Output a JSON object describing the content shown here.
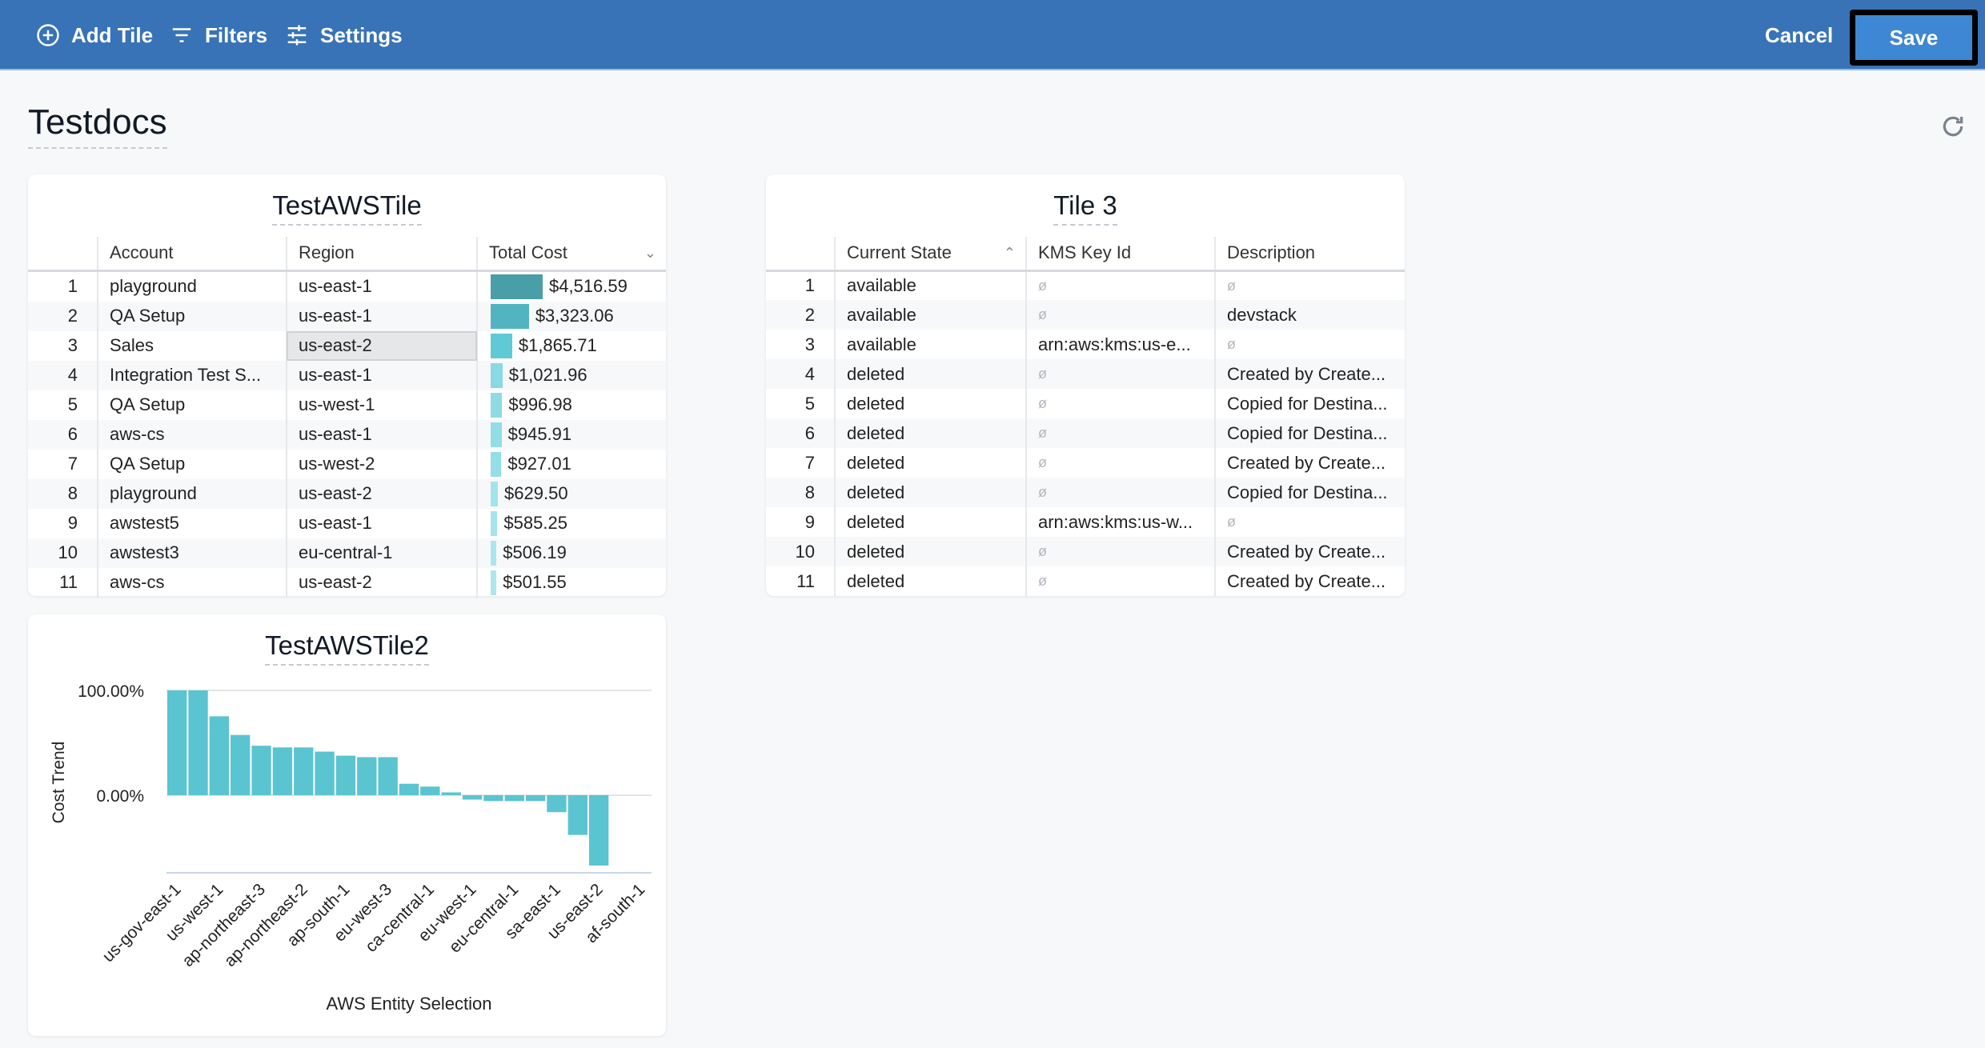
{
  "toolbar": {
    "add_tile": "Add Tile",
    "filters": "Filters",
    "settings": "Settings",
    "cancel": "Cancel",
    "save": "Save"
  },
  "page": {
    "title": "Testdocs"
  },
  "colors": {
    "header": "#3873b8",
    "save": "#3d87d4",
    "bar": "#5bc4d1"
  },
  "tile1": {
    "title": "TestAWSTile",
    "columns": [
      "Account",
      "Region",
      "Total Cost"
    ],
    "rows": [
      [
        "1",
        "playground",
        "us-east-1",
        "$4,516.59"
      ],
      [
        "2",
        "QA Setup",
        "us-east-1",
        "$3,323.06"
      ],
      [
        "3",
        "Sales",
        "us-east-2",
        "$1,865.71"
      ],
      [
        "4",
        "Integration Test S...",
        "us-east-1",
        "$1,021.96"
      ],
      [
        "5",
        "QA Setup",
        "us-west-1",
        "$996.98"
      ],
      [
        "6",
        "aws-cs",
        "us-east-1",
        "$945.91"
      ],
      [
        "7",
        "QA Setup",
        "us-west-2",
        "$927.01"
      ],
      [
        "8",
        "playground",
        "us-east-2",
        "$629.50"
      ],
      [
        "9",
        "awstest5",
        "us-east-1",
        "$585.25"
      ],
      [
        "10",
        "awstest3",
        "eu-central-1",
        "$506.19"
      ],
      [
        "11",
        "aws-cs",
        "us-east-2",
        "$501.55"
      ]
    ]
  },
  "tile3": {
    "title": "Tile 3",
    "columns": [
      "Current State",
      "KMS Key Id",
      "Description"
    ],
    "rows": [
      [
        "1",
        "available",
        "ø",
        "ø"
      ],
      [
        "2",
        "available",
        "ø",
        "devstack"
      ],
      [
        "3",
        "available",
        "arn:aws:kms:us-e...",
        "ø"
      ],
      [
        "4",
        "deleted",
        "ø",
        "Created by Create..."
      ],
      [
        "5",
        "deleted",
        "ø",
        "Copied for Destina..."
      ],
      [
        "6",
        "deleted",
        "ø",
        "Copied for Destina..."
      ],
      [
        "7",
        "deleted",
        "ø",
        "Created by Create..."
      ],
      [
        "8",
        "deleted",
        "ø",
        "Copied for Destina..."
      ],
      [
        "9",
        "deleted",
        "arn:aws:kms:us-w...",
        "ø"
      ],
      [
        "10",
        "deleted",
        "ø",
        "Created by Create..."
      ],
      [
        "11",
        "deleted",
        "ø",
        "Created by Create..."
      ]
    ]
  },
  "chart_data": {
    "type": "bar",
    "title": "TestAWSTile2",
    "xlabel": "AWS Entity Selection",
    "ylabel": "Cost Trend",
    "ylim": [
      -74,
      100
    ],
    "yticks": [
      "100.00%",
      "0.00%"
    ],
    "ytick_values": [
      100,
      0
    ],
    "grid": true,
    "categories": [
      "us-gov-east-1",
      "",
      "us-west-1",
      "",
      "ap-northeast-3",
      "",
      "ap-northeast-2",
      "",
      "ap-south-1",
      "",
      "eu-west-3",
      "",
      "ca-central-1",
      "",
      "eu-west-1",
      "",
      "eu-central-1",
      "",
      "sa-east-1",
      "",
      "us-east-2",
      "",
      "af-south-1"
    ],
    "values": [
      100,
      100,
      75.3,
      57.5,
      47.2,
      45.6,
      45.6,
      41.6,
      37.7,
      36.3,
      36.3,
      10.9,
      8.2,
      2.7,
      -4.2,
      -5.6,
      -5.6,
      -5.6,
      -16.2,
      -37.9,
      -67.1,
      0,
      0
    ],
    "color": "#5bc4d1"
  }
}
